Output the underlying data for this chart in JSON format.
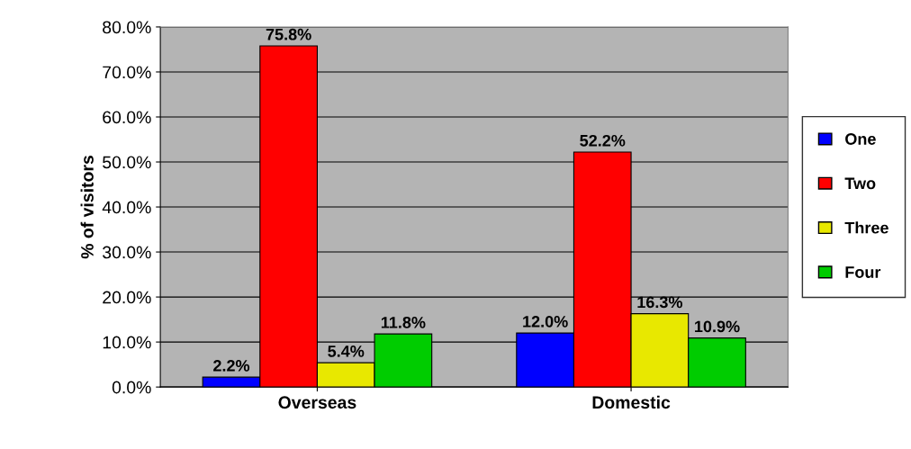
{
  "chart_data": {
    "type": "bar",
    "ylabel": "% of visitors",
    "categories": [
      "Overseas",
      "Domestic"
    ],
    "series": [
      {
        "name": "One",
        "color": "#0000ff",
        "values": [
          2.2,
          12.0
        ],
        "value_labels": [
          "2.2%",
          "12.0%"
        ]
      },
      {
        "name": "Two",
        "color": "#ff0000",
        "values": [
          75.8,
          52.2
        ],
        "value_labels": [
          "75.8%",
          "52.2%"
        ]
      },
      {
        "name": "Three",
        "color": "#e8e800",
        "values": [
          5.4,
          16.3
        ],
        "value_labels": [
          "5.4%",
          "16.3%"
        ]
      },
      {
        "name": "Four",
        "color": "#00cc00",
        "values": [
          11.8,
          10.9
        ],
        "value_labels": [
          "11.8%",
          "10.9%"
        ]
      }
    ],
    "ylim": [
      0,
      80
    ],
    "yticks": [
      {
        "value": 0,
        "label": "0.0%"
      },
      {
        "value": 10,
        "label": "10.0%"
      },
      {
        "value": 20,
        "label": "20.0%"
      },
      {
        "value": 30,
        "label": "30.0%"
      },
      {
        "value": 40,
        "label": "40.0%"
      },
      {
        "value": 50,
        "label": "50.0%"
      },
      {
        "value": 60,
        "label": "60.0%"
      },
      {
        "value": 70,
        "label": "70.0%"
      },
      {
        "value": 80,
        "label": "80.0%"
      }
    ],
    "grid": "y",
    "legend": "right"
  }
}
